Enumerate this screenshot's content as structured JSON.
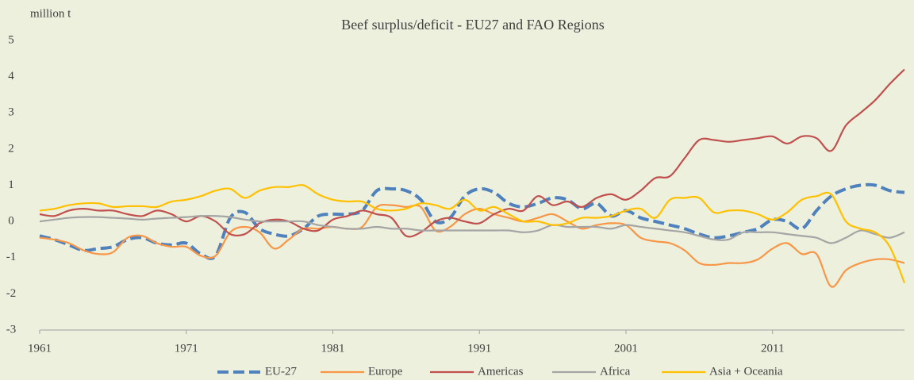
{
  "chart_data": {
    "type": "line",
    "title": "Beef surplus/deficit - EU27 and FAO Regions",
    "y_label": "million t",
    "x": [
      1961,
      1962,
      1963,
      1964,
      1965,
      1966,
      1967,
      1968,
      1969,
      1970,
      1971,
      1972,
      1973,
      1974,
      1975,
      1976,
      1977,
      1978,
      1979,
      1980,
      1981,
      1982,
      1983,
      1984,
      1985,
      1986,
      1987,
      1988,
      1989,
      1990,
      1991,
      1992,
      1993,
      1994,
      1995,
      1996,
      1997,
      1998,
      1999,
      2000,
      2001,
      2002,
      2003,
      2004,
      2005,
      2006,
      2007,
      2008,
      2009,
      2010,
      2011,
      2012,
      2013,
      2014,
      2015,
      2016,
      2017,
      2018,
      2019,
      2020
    ],
    "xlim": [
      1961,
      2020
    ],
    "xticks": [
      1961,
      1971,
      1981,
      1991,
      2001,
      2011
    ],
    "ylim": [
      -3,
      5
    ],
    "yticks": [
      -3,
      -2,
      -1,
      0,
      1,
      2,
      3,
      4,
      5
    ],
    "grid": false,
    "legend": "bottom",
    "series": [
      {
        "name": "EU-27",
        "color": "#4f81bd",
        "style": "dashed",
        "values": [
          -0.4,
          -0.5,
          -0.65,
          -0.8,
          -0.75,
          -0.7,
          -0.5,
          -0.45,
          -0.6,
          -0.65,
          -0.6,
          -0.9,
          -0.95,
          0.1,
          0.25,
          -0.2,
          -0.35,
          -0.4,
          -0.2,
          0.15,
          0.2,
          0.2,
          0.3,
          0.85,
          0.9,
          0.85,
          0.6,
          0.0,
          0.1,
          0.7,
          0.9,
          0.8,
          0.5,
          0.4,
          0.5,
          0.65,
          0.6,
          0.35,
          0.5,
          0.15,
          0.3,
          0.1,
          0.0,
          -0.1,
          -0.2,
          -0.35,
          -0.45,
          -0.4,
          -0.3,
          -0.2,
          0.05,
          0.0,
          -0.2,
          0.3,
          0.7,
          0.9,
          1.0,
          1.0,
          0.85,
          0.8
        ]
      },
      {
        "name": "Europe",
        "color": "#f79646",
        "style": "solid",
        "values": [
          -0.45,
          -0.5,
          -0.6,
          -0.8,
          -0.9,
          -0.85,
          -0.45,
          -0.4,
          -0.6,
          -0.7,
          -0.7,
          -0.95,
          -0.95,
          -0.3,
          -0.15,
          -0.3,
          -0.75,
          -0.5,
          -0.2,
          -0.2,
          -0.15,
          -0.2,
          -0.15,
          0.4,
          0.45,
          0.4,
          0.4,
          -0.25,
          -0.15,
          0.2,
          0.35,
          0.2,
          0.1,
          0.0,
          0.1,
          0.2,
          0.0,
          -0.2,
          -0.1,
          -0.05,
          -0.1,
          -0.45,
          -0.55,
          -0.6,
          -0.8,
          -1.15,
          -1.2,
          -1.15,
          -1.15,
          -1.05,
          -0.75,
          -0.6,
          -0.9,
          -0.9,
          -1.8,
          -1.35,
          -1.15,
          -1.05,
          -1.05,
          -1.15
        ]
      },
      {
        "name": "Americas",
        "color": "#c0504d",
        "style": "solid",
        "values": [
          0.2,
          0.15,
          0.3,
          0.35,
          0.3,
          0.3,
          0.2,
          0.15,
          0.3,
          0.2,
          0.0,
          0.15,
          0.0,
          -0.35,
          -0.35,
          -0.05,
          0.05,
          0.0,
          -0.2,
          -0.25,
          0.05,
          0.15,
          0.3,
          0.2,
          0.1,
          -0.4,
          -0.3,
          0.0,
          0.1,
          0.0,
          -0.05,
          0.2,
          0.35,
          0.3,
          0.7,
          0.45,
          0.55,
          0.4,
          0.65,
          0.75,
          0.6,
          0.85,
          1.2,
          1.25,
          1.75,
          2.25,
          2.25,
          2.2,
          2.25,
          2.3,
          2.35,
          2.15,
          2.35,
          2.3,
          1.95,
          2.65,
          3.0,
          3.35,
          3.8,
          4.2
        ]
      },
      {
        "name": "Africa",
        "color": "#a5a5a5",
        "style": "solid",
        "values": [
          0.0,
          0.05,
          0.1,
          0.12,
          0.12,
          0.1,
          0.08,
          0.05,
          0.08,
          0.1,
          0.12,
          0.15,
          0.15,
          0.12,
          0.05,
          0.0,
          0.0,
          0.0,
          0.0,
          -0.1,
          -0.15,
          -0.2,
          -0.2,
          -0.15,
          -0.2,
          -0.2,
          -0.25,
          -0.25,
          -0.25,
          -0.25,
          -0.25,
          -0.25,
          -0.25,
          -0.3,
          -0.25,
          -0.1,
          -0.15,
          -0.15,
          -0.15,
          -0.2,
          -0.1,
          -0.15,
          -0.2,
          -0.25,
          -0.3,
          -0.4,
          -0.5,
          -0.5,
          -0.3,
          -0.3,
          -0.3,
          -0.35,
          -0.4,
          -0.45,
          -0.6,
          -0.45,
          -0.25,
          -0.35,
          -0.45,
          -0.3
        ]
      },
      {
        "name": "Asia + Oceania",
        "color": "#ffc000",
        "style": "solid",
        "values": [
          0.3,
          0.35,
          0.45,
          0.5,
          0.5,
          0.4,
          0.42,
          0.42,
          0.4,
          0.55,
          0.6,
          0.7,
          0.85,
          0.9,
          0.65,
          0.85,
          0.95,
          0.95,
          1.0,
          0.75,
          0.6,
          0.55,
          0.55,
          0.35,
          0.3,
          0.35,
          0.5,
          0.45,
          0.35,
          0.6,
          0.3,
          0.4,
          0.2,
          0.0,
          0.0,
          -0.1,
          -0.05,
          0.1,
          0.1,
          0.15,
          0.3,
          0.35,
          0.1,
          0.6,
          0.65,
          0.65,
          0.25,
          0.3,
          0.3,
          0.2,
          0.05,
          0.25,
          0.6,
          0.7,
          0.75,
          0.0,
          -0.2,
          -0.3,
          -0.7,
          -1.7
        ]
      }
    ]
  }
}
